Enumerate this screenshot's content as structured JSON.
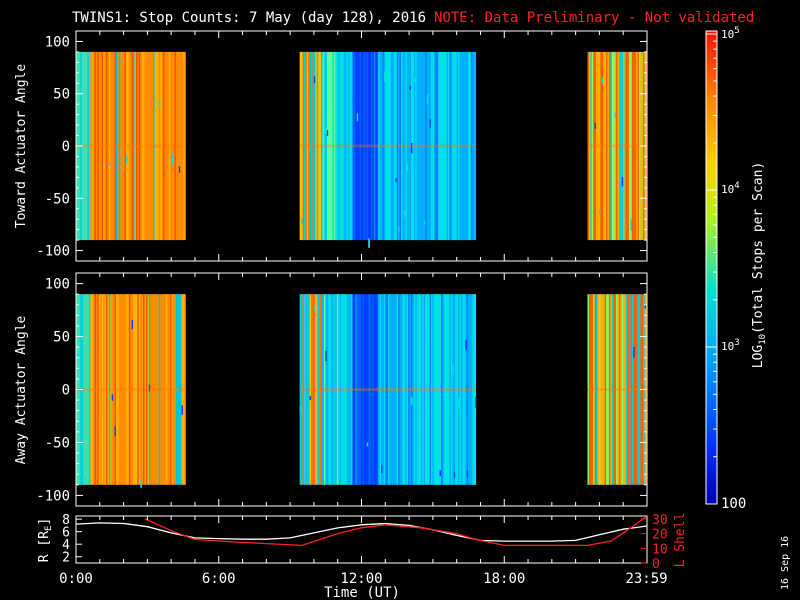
{
  "chart_data": [
    {
      "type": "heatmap",
      "title_main": "TWINS1: Stop Counts:  7 May (day 128), 2016",
      "title_note": "NOTE: Data Preliminary - Not validated",
      "ylabel": "Toward Actuator Angle",
      "ylim": [
        -110,
        110
      ],
      "yticks": [
        "100",
        "50",
        "0",
        "-50",
        "-100"
      ],
      "xlim_hours": [
        0,
        24
      ],
      "data_angle_range": [
        -90,
        90
      ],
      "data_segments_hours": [
        [
          0.0,
          4.6
        ],
        [
          9.4,
          16.8
        ],
        [
          21.5,
          24.0
        ]
      ],
      "colors": {
        "high": "#ff3000",
        "mid_high": "#ffa000",
        "mid": "#00c8c8",
        "low": "#0040ff",
        "lowest": "#0000b0"
      }
    },
    {
      "type": "heatmap",
      "ylabel": "Away Actuator Angle",
      "ylim": [
        -110,
        110
      ],
      "yticks": [
        "100",
        "50",
        "0",
        "-50",
        "-100"
      ],
      "xlim_hours": [
        0,
        24
      ],
      "data_angle_range": [
        -90,
        90
      ],
      "data_segments_hours": [
        [
          0.0,
          4.6
        ],
        [
          9.4,
          16.8
        ],
        [
          21.5,
          24.0
        ]
      ]
    },
    {
      "type": "line",
      "ylabel_left": "R [R",
      "ylabel_left_sub": "E",
      "ylabel_left_end": "]",
      "ylabel_right": "L Shell",
      "yticks_left": [
        "8",
        "6",
        "4",
        "2"
      ],
      "yticks_right": [
        "30",
        "20",
        "10",
        "0"
      ],
      "ylim_left": [
        1,
        8.5
      ],
      "ylim_right": [
        0,
        32
      ],
      "xlabel": "Time (UT)",
      "xticks": [
        "0:00",
        "6:00",
        "12:00",
        "18:00",
        "23:59"
      ],
      "xticks_hours": [
        0,
        6,
        12,
        18,
        23.98
      ],
      "series": [
        {
          "axis": "left",
          "color": "#ffffff",
          "x": [
            0,
            1,
            2,
            3,
            4,
            5,
            6,
            7,
            8,
            9,
            10,
            11,
            12,
            13,
            14,
            15,
            16,
            17,
            18,
            19,
            20,
            21,
            22,
            23,
            24
          ],
          "y": [
            7.2,
            7.4,
            7.3,
            6.8,
            5.8,
            5.0,
            4.9,
            4.8,
            4.8,
            5.0,
            5.8,
            6.6,
            7.1,
            7.3,
            7.0,
            6.3,
            5.4,
            4.6,
            4.5,
            4.5,
            4.5,
            4.6,
            5.5,
            6.4,
            6.9
          ]
        },
        {
          "axis": "right",
          "color": "#ff2020",
          "x": [
            2.9,
            4.0,
            5.0,
            7.0,
            9.5,
            11.0,
            12.0,
            13.0,
            14.5,
            16.0,
            16.8,
            18.0,
            20.0,
            21.5,
            22.5,
            23.5,
            24.0
          ],
          "y": [
            30,
            22,
            16,
            14,
            12,
            20,
            24,
            26,
            24,
            20,
            16,
            12,
            12,
            12,
            15,
            26,
            32
          ]
        }
      ]
    }
  ],
  "colorbar": {
    "label": "LOG",
    "label_sub": "10",
    "label_rest": "(Total Stops per Scan)",
    "ticks": [
      {
        "base": "10",
        "exp": "5"
      },
      {
        "base": "10",
        "exp": "4"
      },
      {
        "base": "10",
        "exp": "3"
      }
    ],
    "bottom_tick": "100"
  },
  "date_stamp": "16 Sep 16"
}
